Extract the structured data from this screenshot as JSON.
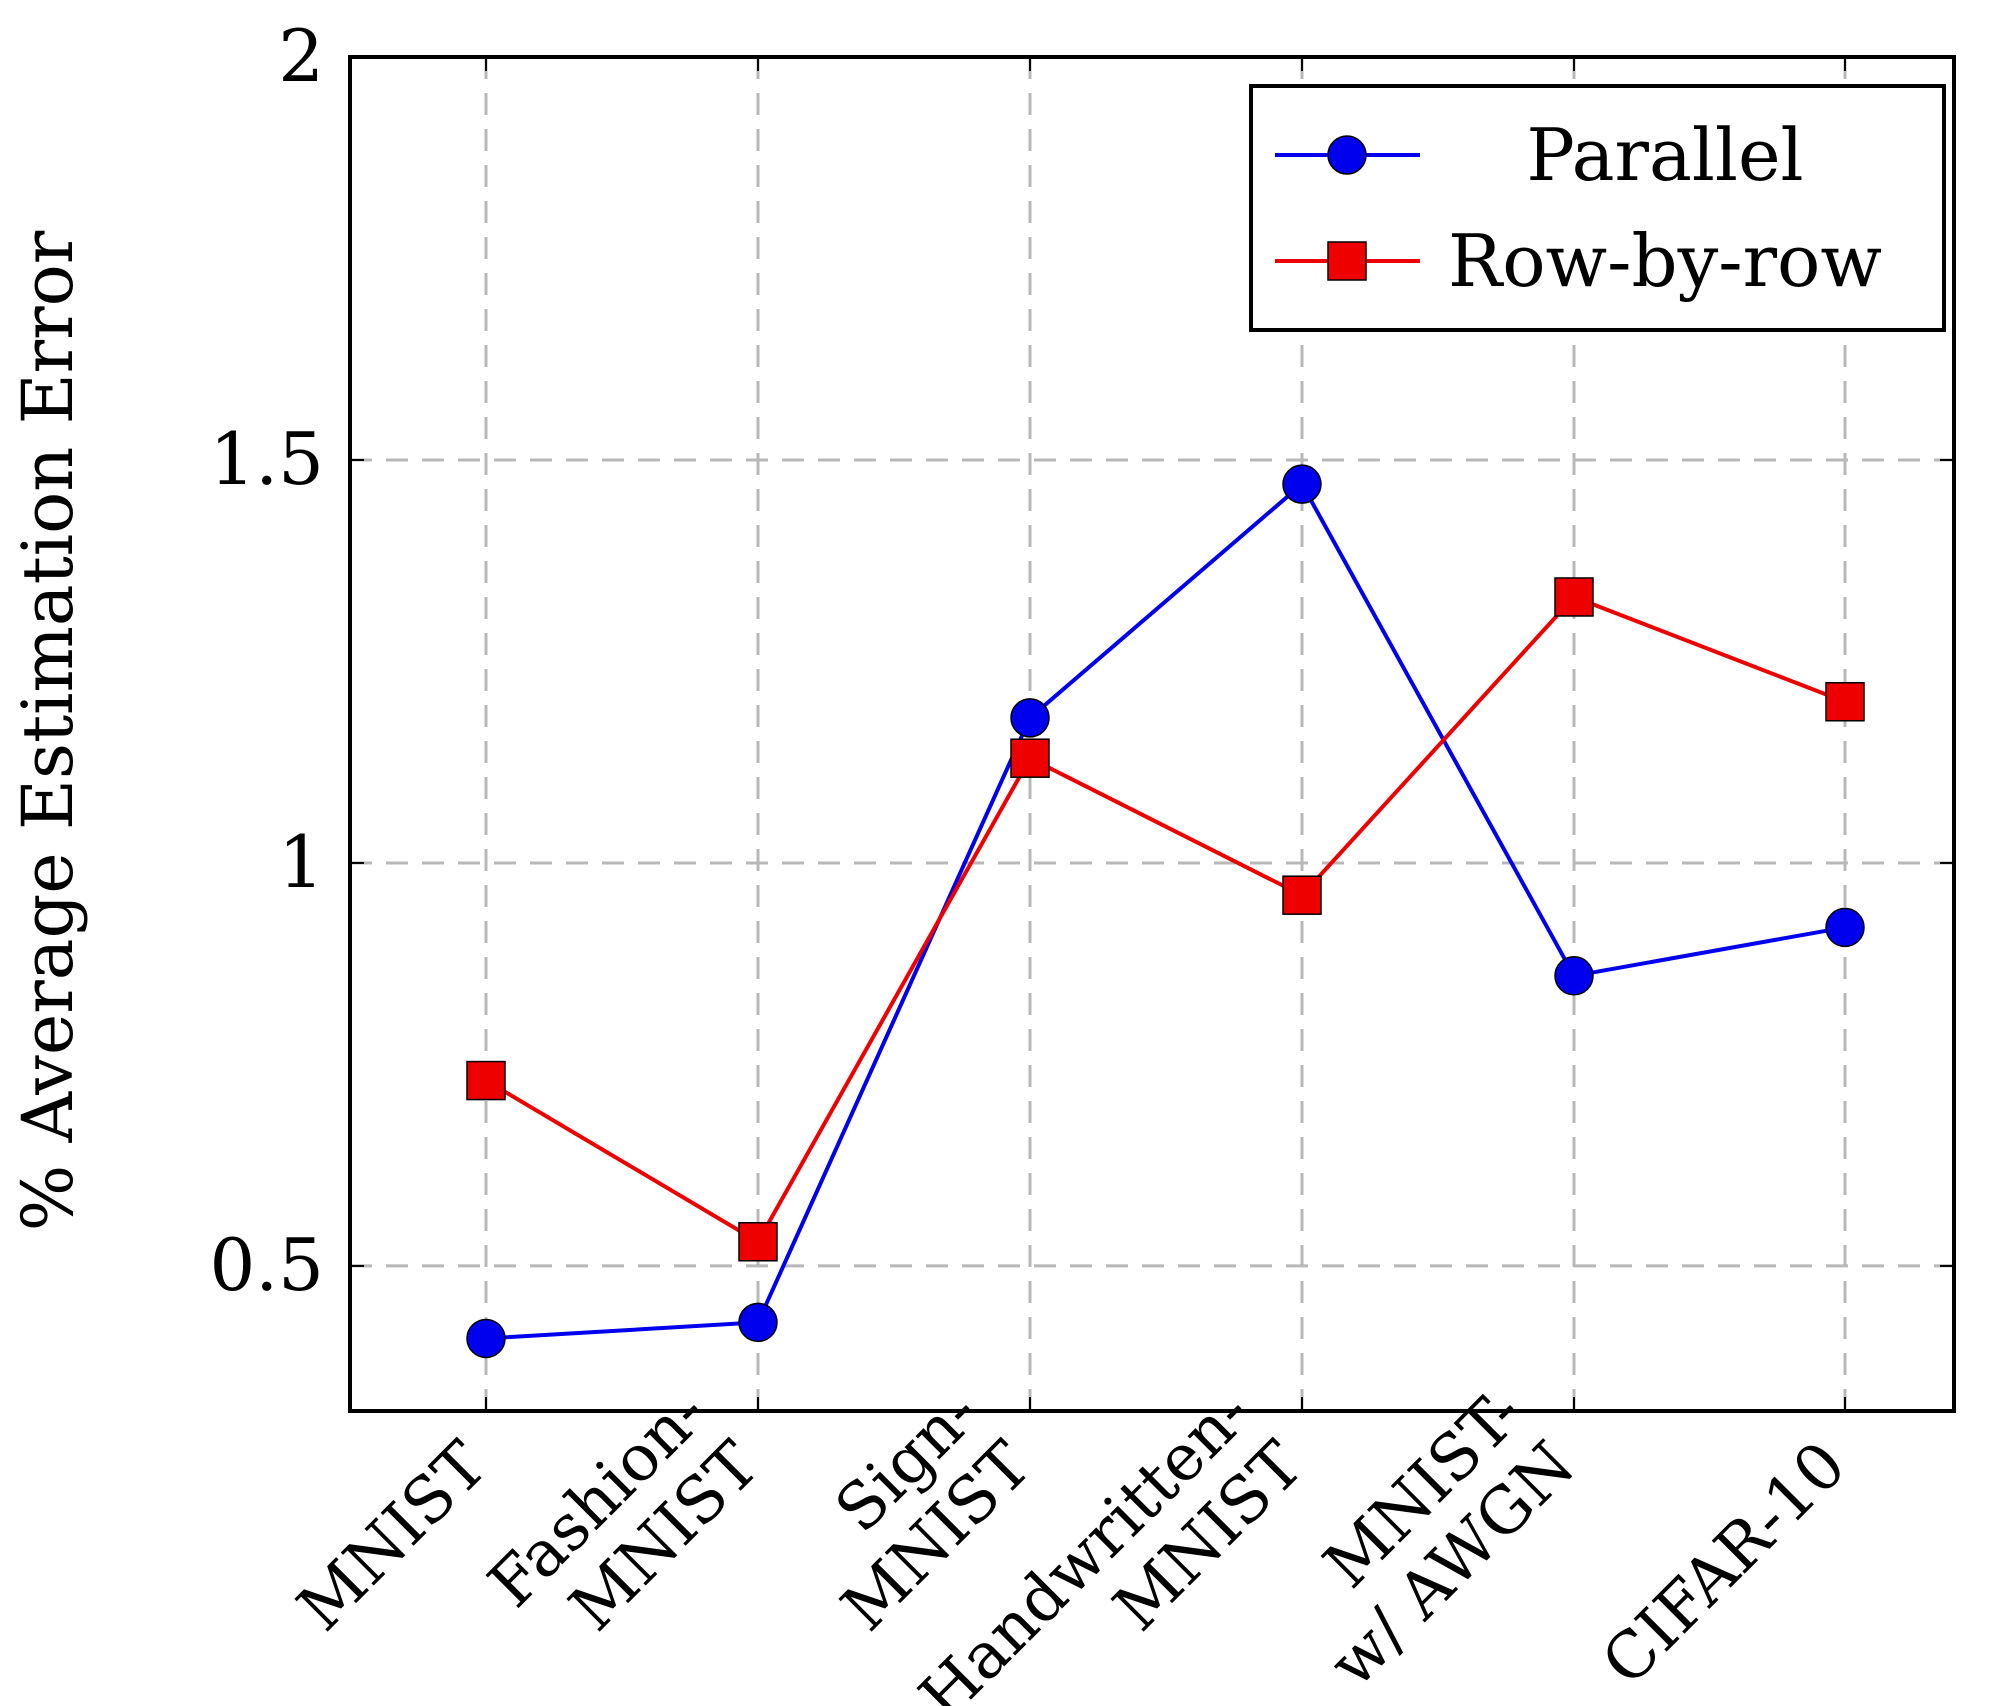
{
  "chart_data": {
    "type": "line",
    "title": "",
    "xlabel": "",
    "ylabel": "% Average Estimation Error",
    "ylim": [
      0.32,
      2.0
    ],
    "yticks": [
      0.5,
      1,
      1.5,
      2
    ],
    "ytick_labels": [
      "0.5",
      "1",
      "1.5",
      "2"
    ],
    "grid": true,
    "legend_position": "top-right",
    "categories": [
      [
        "MNIST"
      ],
      [
        "Fashion-",
        "MNIST"
      ],
      [
        "Sign-",
        "MNIST"
      ],
      [
        "Handwritten-",
        "MNIST"
      ],
      [
        "MNIST-",
        "w/ AWGN"
      ],
      [
        "CIFAR-10"
      ]
    ],
    "series": [
      {
        "name": "Parallel",
        "color": "#0000ee",
        "marker": "circle",
        "values": [
          0.41,
          0.43,
          1.18,
          1.47,
          0.86,
          0.92
        ]
      },
      {
        "name": "Row-by-row",
        "color": "#ee0000",
        "marker": "square",
        "values": [
          0.73,
          0.53,
          1.13,
          0.96,
          1.33,
          1.2
        ]
      }
    ]
  }
}
